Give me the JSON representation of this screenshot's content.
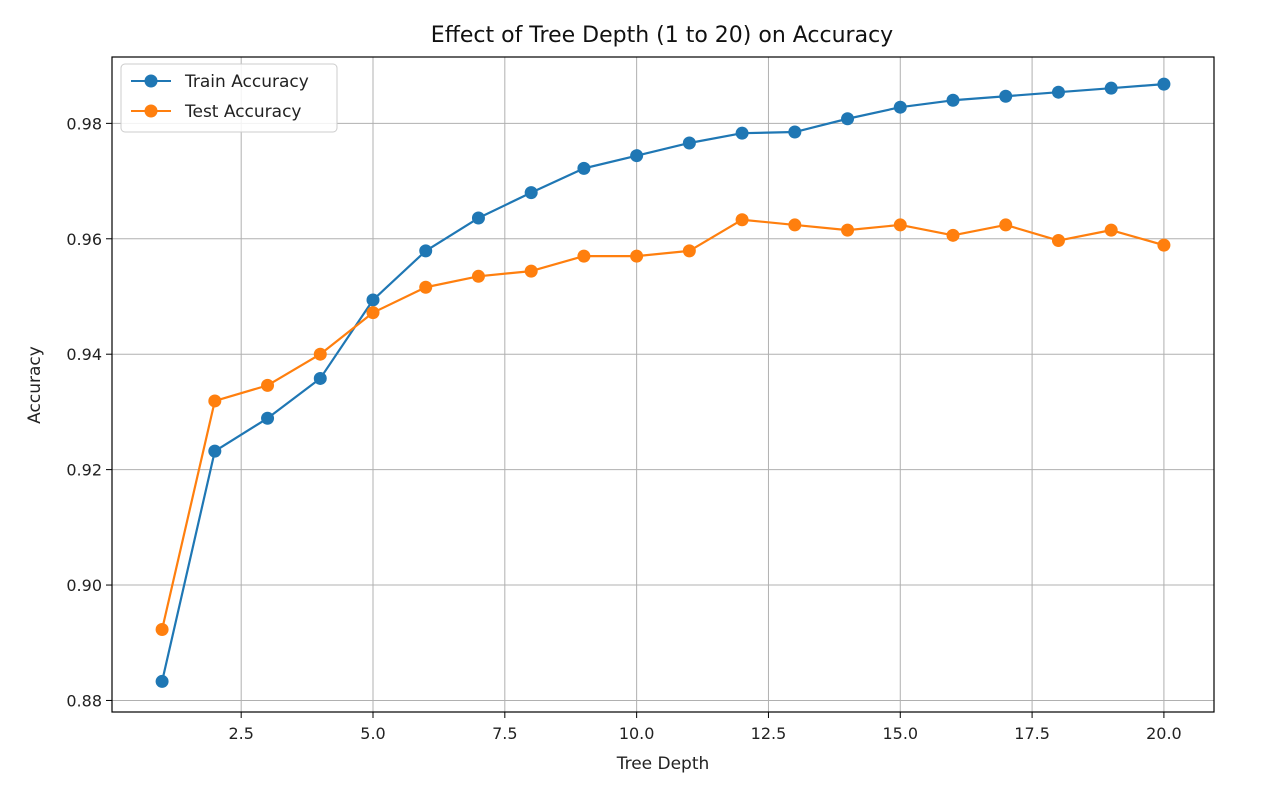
{
  "chart_data": {
    "type": "line",
    "title": "Effect of Tree Depth (1 to 20) on Accuracy",
    "xlabel": "Tree Depth",
    "ylabel": "Accuracy",
    "xlim": [
      0.05,
      20.95
    ],
    "ylim": [
      0.878,
      0.9915
    ],
    "xticks": [
      2.5,
      5.0,
      7.5,
      10.0,
      12.5,
      15.0,
      17.5,
      20.0
    ],
    "xtick_labels": [
      "2.5",
      "5.0",
      "7.5",
      "10.0",
      "12.5",
      "15.0",
      "17.5",
      "20.0"
    ],
    "yticks": [
      0.88,
      0.9,
      0.92,
      0.94,
      0.96,
      0.98
    ],
    "ytick_labels": [
      "0.88",
      "0.90",
      "0.92",
      "0.94",
      "0.96",
      "0.98"
    ],
    "grid": true,
    "legend_position": "top-left",
    "x": [
      1,
      2,
      3,
      4,
      5,
      6,
      7,
      8,
      9,
      10,
      11,
      12,
      13,
      14,
      15,
      16,
      17,
      18,
      19,
      20
    ],
    "series": [
      {
        "name": "Train Accuracy",
        "color": "#1f77b4",
        "marker": "circle",
        "values": [
          0.8833,
          0.9232,
          0.9289,
          0.9358,
          0.9494,
          0.9579,
          0.9636,
          0.968,
          0.9722,
          0.9744,
          0.9766,
          0.9783,
          0.9785,
          0.9808,
          0.9828,
          0.984,
          0.9847,
          0.9854,
          0.9861,
          0.9868
        ]
      },
      {
        "name": "Test Accuracy",
        "color": "#ff7f0e",
        "marker": "circle",
        "values": [
          0.8923,
          0.9319,
          0.9346,
          0.94,
          0.9472,
          0.9516,
          0.9535,
          0.9544,
          0.957,
          0.957,
          0.9579,
          0.9633,
          0.9624,
          0.9615,
          0.9624,
          0.9606,
          0.9624,
          0.9597,
          0.9615,
          0.9589
        ]
      }
    ]
  }
}
